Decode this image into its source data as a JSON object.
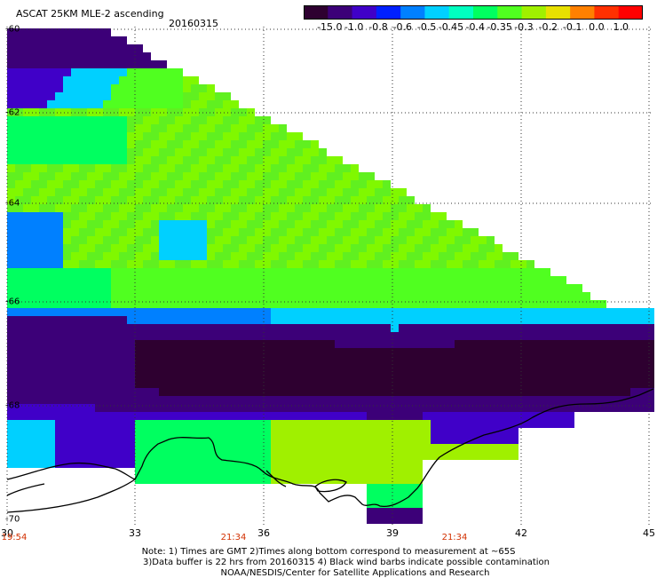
{
  "header": {
    "title": "ASCAT 25KM MLE-2 ascending",
    "date": "20160315"
  },
  "colorbar": {
    "labels": [
      "-15.0",
      "-1.0",
      "-0.8",
      "-0.6",
      "-0.5",
      "-0.45",
      "-0.4",
      "-0.35",
      "-0.3",
      "-0.2",
      "-0.1",
      "0.0",
      "1.0"
    ],
    "colors": [
      "#2e0030",
      "#3c0078",
      "#4000c8",
      "#0020ff",
      "#0080ff",
      "#00d0ff",
      "#00ffc0",
      "#00ff60",
      "#50ff20",
      "#a0f000",
      "#e8e000",
      "#ff8000",
      "#ff3000",
      "#ff0000"
    ]
  },
  "axes": {
    "x_ticks": [
      "30",
      "33",
      "36",
      "39",
      "42",
      "45"
    ],
    "y_ticks": [
      "-60",
      "-62",
      "-64",
      "-66",
      "-68",
      "-70"
    ]
  },
  "times": {
    "labels": [
      "19:54",
      "21:34",
      "21:34"
    ]
  },
  "notes": {
    "line1": "Note: 1) Times are GMT 2)Times along bottom correspond to measurement at ~65S",
    "line2": "3)Data buffer is 22 hrs from 20160315 4) Black wind barbs indicate possible contamination",
    "line3": "NOAA/NESDIS/Center for Satellite Applications and Research"
  }
}
